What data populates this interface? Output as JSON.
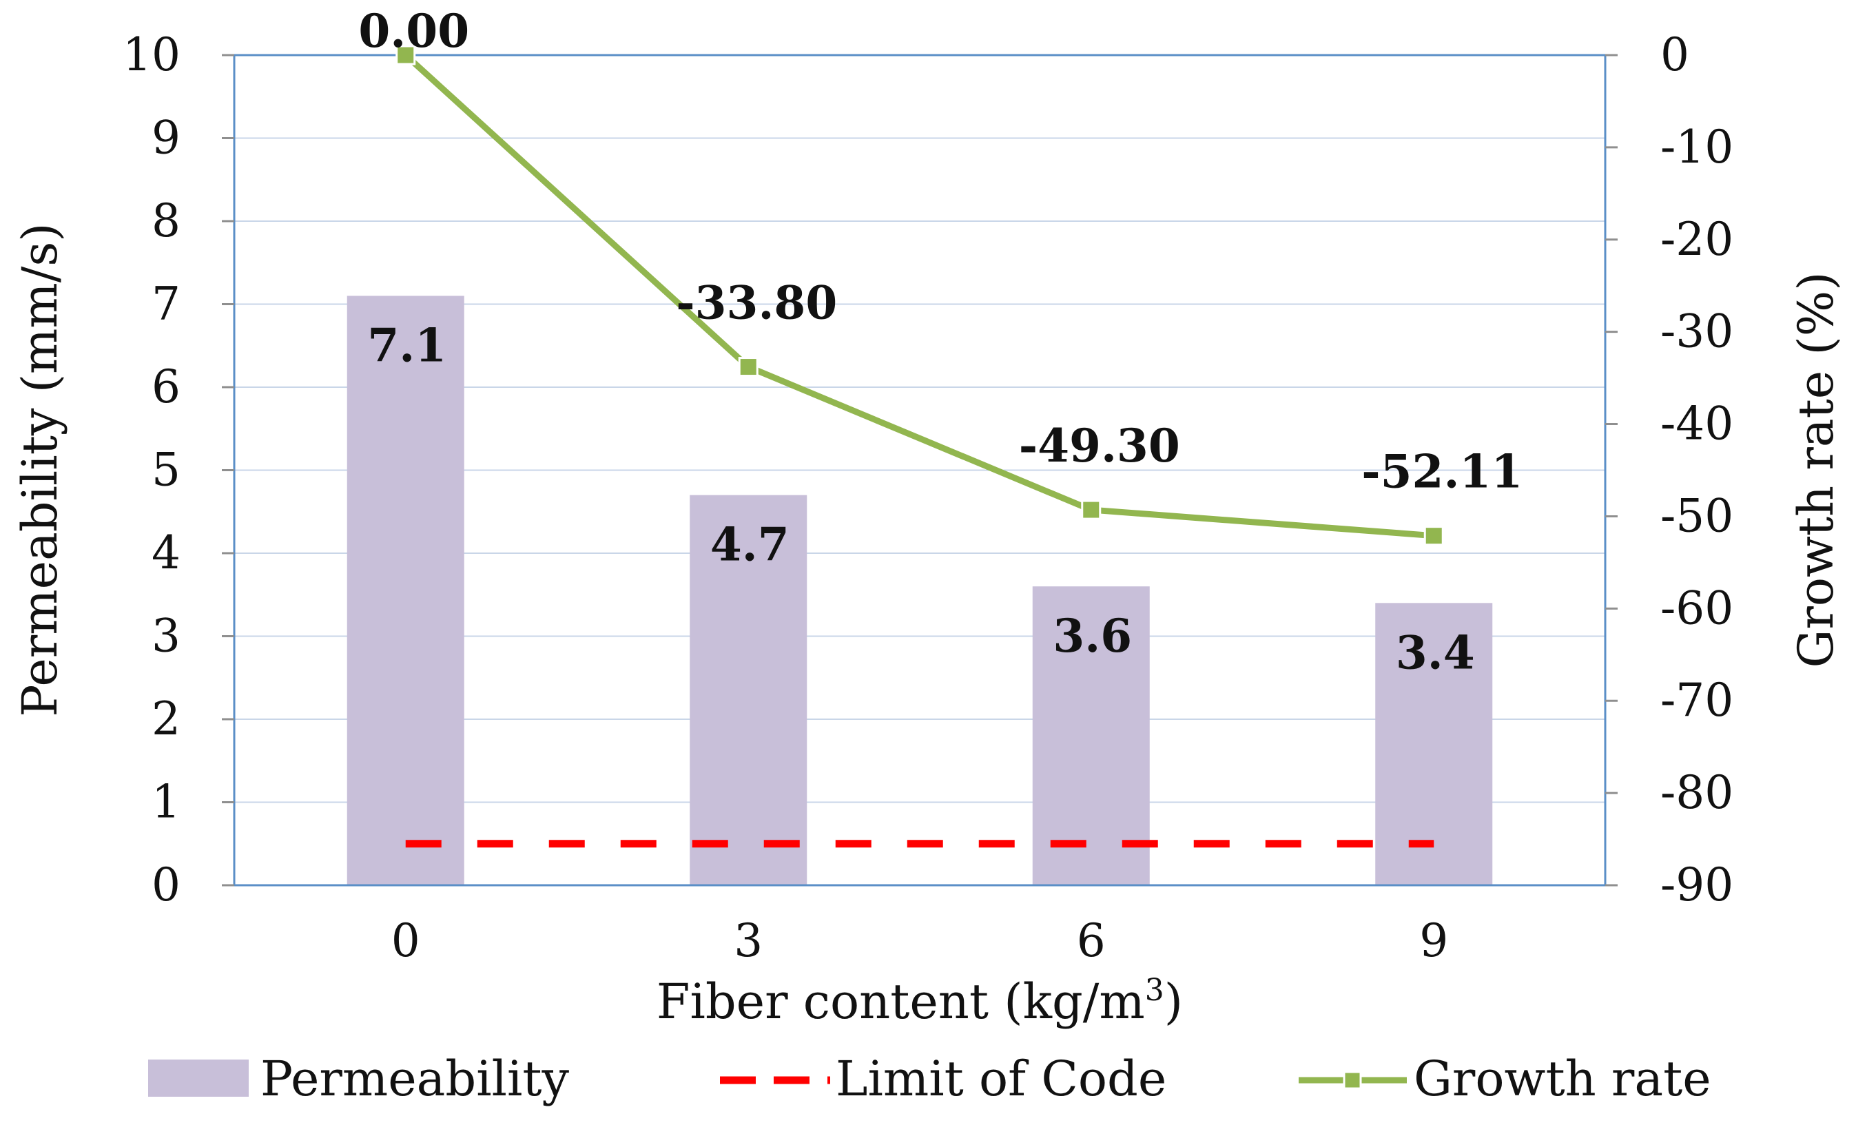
{
  "chart_data": {
    "type": "bar",
    "title": "",
    "xlabel_main": "Fiber content (kg/m",
    "xlabel_sup": "3",
    "xlabel_close": ")",
    "categories": [
      "0",
      "3",
      "6",
      "9"
    ],
    "series": [
      {
        "name": "Permeability",
        "type": "bar",
        "axis": "left",
        "values": [
          7.1,
          4.7,
          3.6,
          3.4
        ],
        "labels": [
          "7.1",
          "4.7",
          "3.6",
          "3.4"
        ],
        "color": "#c8bfd9"
      },
      {
        "name": "Limit of Code",
        "type": "line-dashed",
        "axis": "left",
        "values": [
          0.5,
          0.5,
          0.5,
          0.5
        ],
        "color": "#ff0000"
      },
      {
        "name": "Growth rate",
        "type": "line",
        "axis": "right",
        "values": [
          0.0,
          -33.8,
          -49.3,
          -52.11
        ],
        "labels": [
          "0.00",
          "-33.80",
          "-49.30",
          "-52.11"
        ],
        "color": "#92b64f"
      }
    ],
    "y_left": {
      "label": "Permeability (mm/s)",
      "lim": [
        0,
        10
      ],
      "ticks": [
        "0",
        "1",
        "2",
        "3",
        "4",
        "5",
        "6",
        "7",
        "8",
        "9",
        "10"
      ]
    },
    "y_right": {
      "label": "Growth rate (%)",
      "lim": [
        -90,
        0
      ],
      "ticks": [
        "0",
        "-10",
        "-20",
        "-30",
        "-40",
        "-50",
        "-60",
        "-70",
        "-80",
        "-90"
      ]
    },
    "grid": true,
    "legend_position": "bottom",
    "colors": {
      "plot_border": "#5b8fc7",
      "gridline": "#c9d6e8",
      "axis": "#8f8f8f"
    }
  }
}
